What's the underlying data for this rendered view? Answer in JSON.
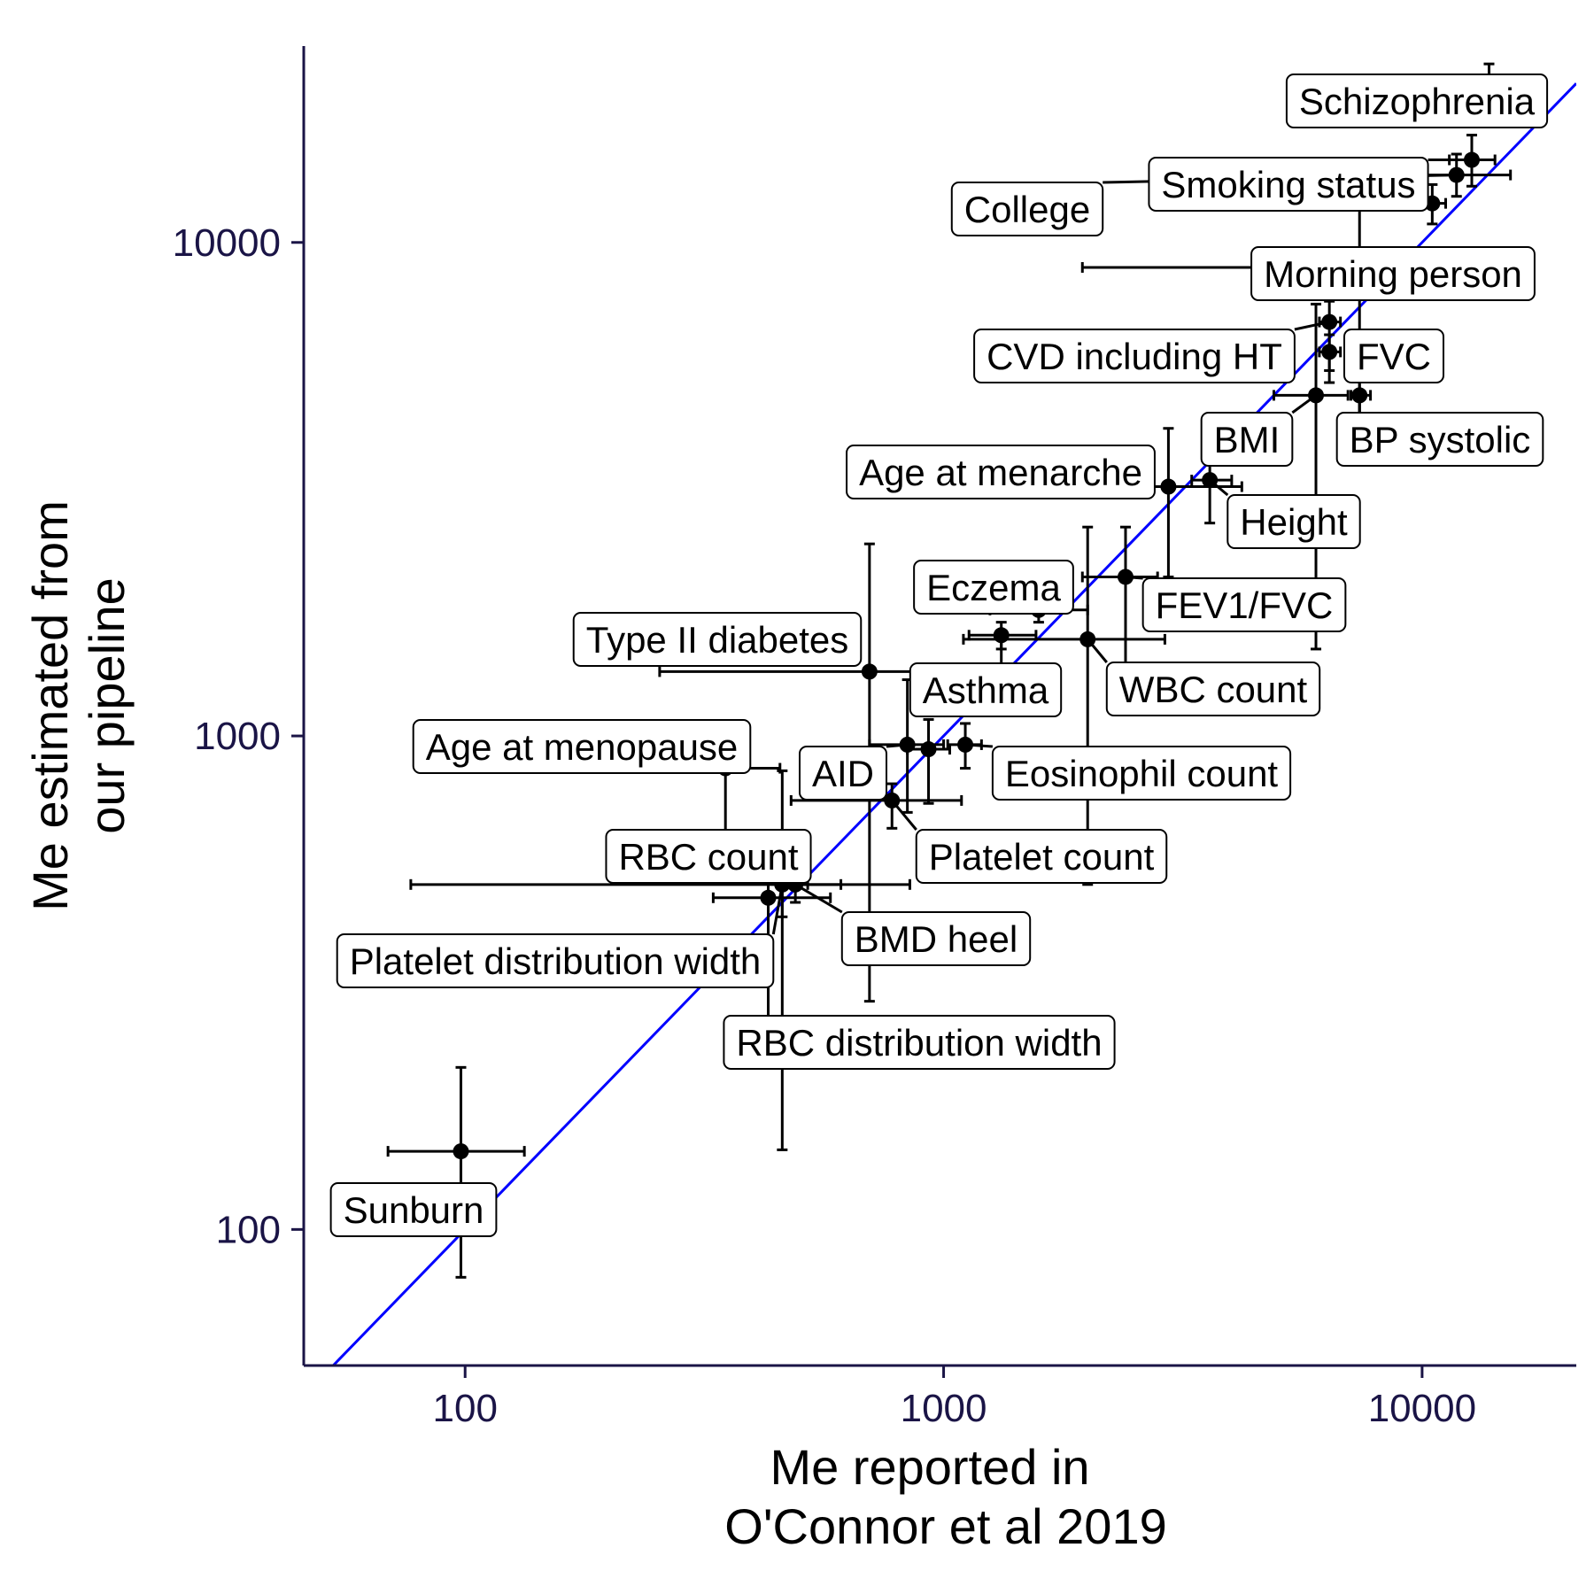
{
  "chart_data": {
    "type": "scatter",
    "xlabel": [
      "Me reported in",
      "O'Connor et al 2019"
    ],
    "ylabel": [
      "Me estimated from",
      "our pipeline"
    ],
    "x_scale": "log10",
    "y_scale": "log10",
    "xlim": [
      46,
      21000
    ],
    "ylim": [
      53,
      25000
    ],
    "x_ticks": [
      {
        "value": 100,
        "label": "100"
      },
      {
        "value": 1000,
        "label": "1000"
      },
      {
        "value": 10000,
        "label": "10000"
      }
    ],
    "y_ticks": [
      {
        "value": 100,
        "label": "100"
      },
      {
        "value": 1000,
        "label": "1000"
      },
      {
        "value": 10000,
        "label": "10000"
      }
    ],
    "reference_line": {
      "type": "identity",
      "color": "#0000ff"
    },
    "grid": false,
    "colors": {
      "points": "#000000",
      "axes": "#1a1446",
      "reference": "#0000ff"
    },
    "points": [
      {
        "label": "Schizophrenia",
        "x": 13800,
        "y": 20000,
        "xerr": [
          12000,
          15800
        ],
        "yerr": [
          17300,
          23000
        ]
      },
      {
        "label": "Smoking status",
        "x": 12700,
        "y": 14700,
        "xerr": [
          11400,
          14200
        ],
        "yerr": [
          13000,
          16500
        ]
      },
      {
        "label": "College",
        "x": 11800,
        "y": 13700,
        "xerr": [
          7100,
          15300
        ],
        "yerr": [
          12400,
          15100
        ]
      },
      {
        "label": "",
        "x": 10500,
        "y": 12000,
        "xerr": [
          9800,
          11200
        ],
        "yerr": [
          10900,
          13100
        ]
      },
      {
        "label": "Morning person",
        "x": 7400,
        "y": 8900,
        "xerr": [
          1950,
          13000
        ],
        "yerr": [
          3900,
          12600
        ]
      },
      {
        "label": "CVD including HT",
        "x": 6400,
        "y": 6900,
        "xerr": [
          6100,
          6750
        ],
        "yerr": [
          5200,
          7600
        ]
      },
      {
        "label": "FVC",
        "x": 6400,
        "y": 6000,
        "xerr": [
          6100,
          6750
        ],
        "yerr": [
          5500,
          6500
        ]
      },
      {
        "label": "BMI",
        "x": 6000,
        "y": 4900,
        "xerr": [
          4900,
          7000
        ],
        "yerr": [
          1500,
          7500
        ]
      },
      {
        "label": "BP systolic",
        "x": 7400,
        "y": 4900,
        "xerr": [
          7100,
          7800
        ],
        "yerr": [
          3800,
          5600
        ]
      },
      {
        "label": "Height",
        "x": 3600,
        "y": 3300,
        "xerr": [
          3300,
          4000
        ],
        "yerr": [
          2700,
          3900
        ]
      },
      {
        "label": "Age at menarche",
        "x": 2950,
        "y": 3200,
        "xerr": [
          1700,
          4200
        ],
        "yerr": [
          2100,
          4200
        ]
      },
      {
        "label": "FEV1/FVC",
        "x": 2400,
        "y": 2100,
        "xerr": [
          1950,
          2800
        ],
        "yerr": [
          1150,
          2650
        ]
      },
      {
        "label": "Eczema",
        "x": 1580,
        "y": 1800,
        "xerr": [
          1250,
          2000
        ],
        "yerr": [
          1700,
          1900
        ]
      },
      {
        "label": "Asthma",
        "x": 1320,
        "y": 1600,
        "xerr": [
          1130,
          1560
        ],
        "yerr": [
          1500,
          1700
        ]
      },
      {
        "label": "WBC count",
        "x": 2000,
        "y": 1570,
        "xerr": [
          1100,
          2900
        ],
        "yerr": [
          500,
          2650
        ]
      },
      {
        "label": "Type II diabetes",
        "x": 700,
        "y": 1350,
        "xerr": [
          255,
          1500
        ],
        "yerr": [
          290,
          2450
        ]
      },
      {
        "label": "AID",
        "x": 840,
        "y": 960,
        "xerr": [
          700,
          1000
        ],
        "yerr": [
          700,
          1300
        ]
      },
      {
        "label": "Eosinophil count",
        "x": 1110,
        "y": 960,
        "xerr": [
          1020,
          1200
        ],
        "yerr": [
          860,
          1060
        ]
      },
      {
        "label": "",
        "x": 930,
        "y": 940,
        "xerr": [
          840,
          1030
        ],
        "yerr": [
          730,
          1080
        ]
      },
      {
        "label": "Age at menopause",
        "x": 350,
        "y": 860,
        "xerr": [
          255,
          455
        ],
        "yerr": [
          550,
          920
        ]
      },
      {
        "label": "Platelet count",
        "x": 780,
        "y": 740,
        "xerr": [
          480,
          1090
        ],
        "yerr": [
          650,
          800
        ]
      },
      {
        "label": "RBC count",
        "x": 460,
        "y": 500,
        "xerr": [
          480,
          610
        ],
        "yerr": [
          430,
          570
        ]
      },
      {
        "label": "Platelet distribution width",
        "x": 460,
        "y": 500,
        "xerr": [
          77,
          850
        ],
        "yerr": [
          145,
          850
        ]
      },
      {
        "label": "RBC distribution width",
        "x": 430,
        "y": 470,
        "xerr": [
          330,
          580
        ],
        "yerr": [
          360,
          570
        ]
      },
      {
        "label": "BMD heel",
        "x": 490,
        "y": 500,
        "xerr": [
          460,
          520
        ],
        "yerr": [
          460,
          540
        ]
      },
      {
        "label": "Sunburn",
        "x": 98,
        "y": 144,
        "xerr": [
          69,
          133
        ],
        "yerr": [
          80,
          213
        ]
      }
    ]
  }
}
